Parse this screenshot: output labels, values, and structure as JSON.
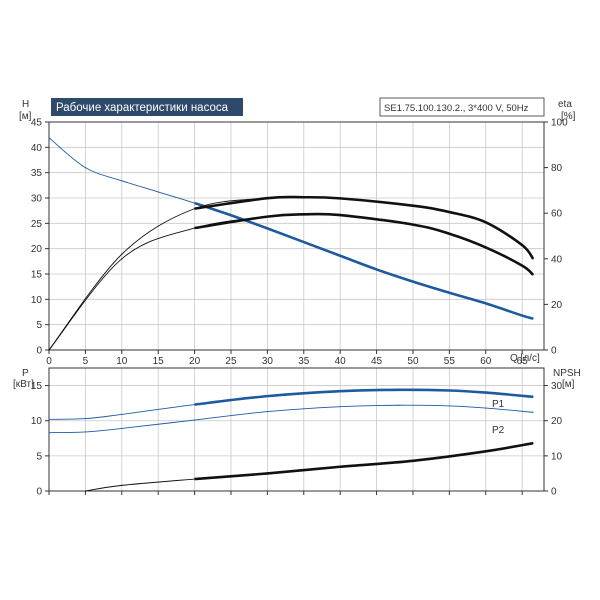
{
  "colors": {
    "title_bg": "#2e4a6b",
    "title_fg": "#ffffff",
    "blue": "#1e5aa0",
    "dark": "#111111",
    "grid": "#c8c8c8"
  },
  "chart_data": [
    {
      "type": "line",
      "title": "Рабочие характеристики насоса",
      "subtitle": "SE1.75.100.130.2., 3*400 V, 50Hz",
      "xlabel": "Q [л/с]",
      "ylabel_left": "H",
      "ylabel_left_unit": "[м]",
      "ylabel_right": "eta",
      "ylabel_right_unit": "[%]",
      "xlim": [
        0,
        68
      ],
      "ylim": [
        0,
        45
      ],
      "ylim_right": [
        0,
        100
      ],
      "x_ticks": [
        0,
        5,
        10,
        15,
        20,
        25,
        30,
        35,
        40,
        45,
        50,
        55,
        60,
        65
      ],
      "y_ticks": [
        0,
        5,
        10,
        15,
        20,
        25,
        30,
        35,
        40,
        45
      ],
      "y_right_ticks": [
        0,
        20,
        40,
        60,
        80,
        100
      ],
      "grid": true,
      "series": [
        {
          "axis": "left",
          "color": "blue",
          "x": [
            0,
            5,
            10,
            15,
            20,
            25,
            30,
            35,
            40,
            45,
            50,
            55,
            60,
            65,
            66.5
          ],
          "y": [
            41.9,
            36.0,
            33.4,
            31.2,
            29.0,
            26.6,
            24.0,
            21.3,
            18.6,
            15.9,
            13.5,
            11.3,
            9.2,
            6.8,
            6.2
          ],
          "bold_from_x": 20
        },
        {
          "axis": "right",
          "color": "dark",
          "x": [
            0,
            10,
            20,
            30,
            35,
            40,
            50,
            55,
            60,
            65,
            66.5
          ],
          "y": [
            0,
            40,
            53.5,
            58.5,
            59.5,
            59.2,
            55,
            51,
            45,
            37,
            33
          ],
          "bold_from_x": 20
        },
        {
          "axis": "right",
          "color": "dark",
          "x": [
            0,
            10,
            20,
            30,
            35,
            40,
            50,
            55,
            60,
            65,
            66.5
          ],
          "y": [
            0,
            42,
            62,
            66.6,
            67,
            66.5,
            63.3,
            60.5,
            56,
            46,
            40
          ],
          "bold_from_x": 20
        }
      ]
    },
    {
      "type": "line",
      "xlabel": "",
      "ylabel_left": "P",
      "ylabel_left_unit": "[кВт]",
      "ylabel_right": "NPSH",
      "ylabel_right_unit": "[м]",
      "xlim": [
        0,
        68
      ],
      "ylim": [
        0,
        17.5
      ],
      "ylim_right": [
        0,
        35
      ],
      "y_ticks": [
        0,
        5,
        10,
        15
      ],
      "y_right_ticks": [
        0,
        10,
        20,
        30
      ],
      "grid": true,
      "series": [
        {
          "name": "P1",
          "axis": "left",
          "color": "blue",
          "x": [
            0,
            5,
            10,
            20,
            30,
            40,
            48,
            55,
            60,
            66.5
          ],
          "y": [
            10.2,
            10.3,
            10.9,
            12.3,
            13.5,
            14.2,
            14.4,
            14.3,
            14.0,
            13.4
          ],
          "bold_from_x": 20
        },
        {
          "name": "P2",
          "axis": "left",
          "color": "blue",
          "x": [
            0,
            5,
            10,
            20,
            30,
            40,
            48,
            55,
            60,
            66.5
          ],
          "y": [
            8.3,
            8.4,
            8.9,
            10.1,
            11.3,
            12.0,
            12.2,
            12.1,
            11.8,
            11.2
          ],
          "bold_from_x": 0
        },
        {
          "axis": "right",
          "color": "dark",
          "x": [
            5,
            10,
            20,
            30,
            40,
            50,
            60,
            66.5
          ],
          "y": [
            0,
            1.6,
            3.4,
            5.0,
            6.9,
            8.6,
            11.3,
            13.6
          ],
          "bold_from_x": 20
        }
      ]
    }
  ]
}
